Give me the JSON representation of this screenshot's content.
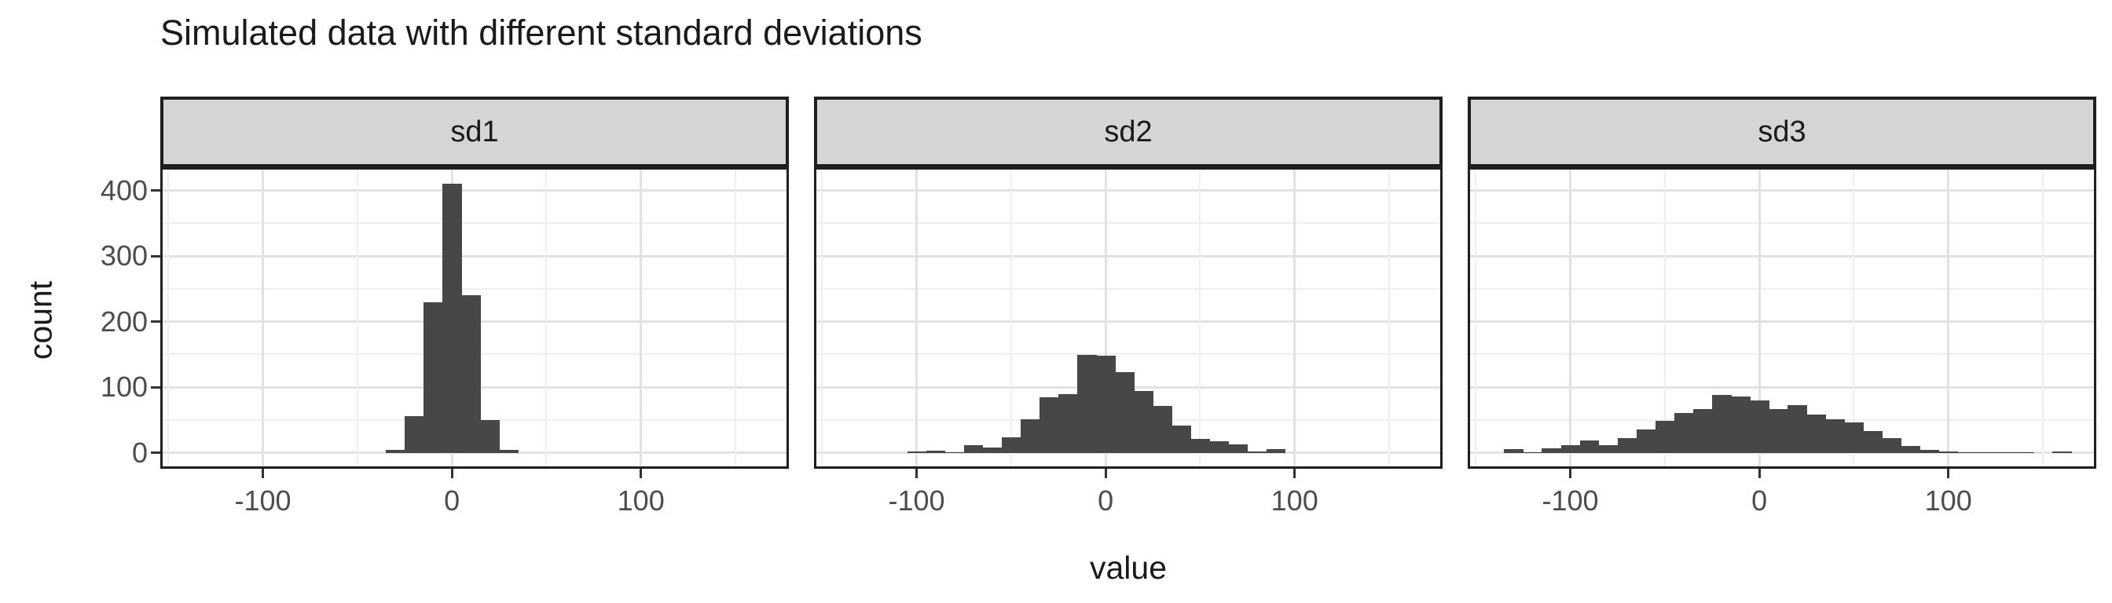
{
  "chart_data": {
    "type": "bar",
    "subtype": "faceted-histogram",
    "title": "Simulated data with different standard deviations",
    "xlabel": "value",
    "ylabel": "count",
    "x_ticks": [
      -100,
      0,
      100
    ],
    "y_ticks": [
      0,
      100,
      200,
      300,
      400
    ],
    "x_minor_gridlines": [
      -150,
      -50,
      50,
      150
    ],
    "y_minor_gridlines": [
      50,
      150,
      250,
      350
    ],
    "xlim": [
      -153,
      177
    ],
    "ylim": [
      -21,
      432
    ],
    "bin_width": 10,
    "grid": true,
    "legend": "none",
    "facets": [
      {
        "label": "sd1",
        "bin_centers": [
          -30,
          -20,
          -10,
          0,
          10,
          20,
          30
        ],
        "counts": [
          4,
          56,
          230,
          410,
          240,
          50,
          4
        ]
      },
      {
        "label": "sd2",
        "bin_centers": [
          -100,
          -90,
          -80,
          -70,
          -60,
          -50,
          -40,
          -30,
          -20,
          -10,
          0,
          10,
          20,
          30,
          40,
          50,
          60,
          70,
          80,
          90
        ],
        "counts": [
          2,
          3,
          1,
          12,
          8,
          23,
          51,
          85,
          89,
          149,
          148,
          123,
          94,
          71,
          42,
          21,
          18,
          13,
          2,
          6
        ]
      },
      {
        "label": "sd3",
        "bin_centers": [
          -130,
          -120,
          -110,
          -100,
          -90,
          -80,
          -70,
          -60,
          -50,
          -40,
          -30,
          -20,
          -10,
          0,
          10,
          20,
          30,
          40,
          50,
          60,
          70,
          80,
          90,
          100,
          110,
          120,
          130,
          140,
          150,
          160
        ],
        "counts": [
          5,
          1,
          7,
          12,
          19,
          11,
          22,
          36,
          48,
          60,
          66,
          88,
          86,
          80,
          66,
          73,
          58,
          51,
          46,
          33,
          22,
          10,
          4,
          2,
          1,
          1,
          1,
          1,
          0,
          2
        ]
      }
    ],
    "colors": {
      "bar_fill": "#474747",
      "strip_background": "#d5d5d5",
      "panel_border": "#1f1f1f",
      "grid_major": "#e2e2e2",
      "grid_minor": "#efefef",
      "axis_text": "#4d4d4d",
      "tick_mark": "#333333",
      "title_text": "#1a1a1a",
      "background": "#ffffff"
    }
  }
}
